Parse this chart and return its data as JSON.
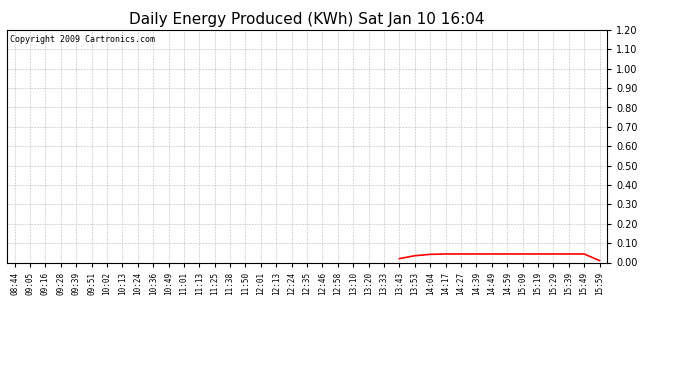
{
  "title": "Daily Energy Produced (KWh) Sat Jan 10 16:04",
  "copyright_text": "Copyright 2009 Cartronics.com",
  "line_color": "#FF0000",
  "background_color": "#FFFFFF",
  "plot_background_color": "#FFFFFF",
  "grid_color": "#BBBBBB",
  "ylim": [
    0.0,
    1.2
  ],
  "yticks": [
    0.0,
    0.1,
    0.2,
    0.3,
    0.4,
    0.5,
    0.6,
    0.7,
    0.8,
    0.9,
    1.0,
    1.1,
    1.2
  ],
  "x_labels": [
    "08:44",
    "09:05",
    "09:16",
    "09:28",
    "09:39",
    "09:51",
    "10:02",
    "10:13",
    "10:24",
    "10:36",
    "10:49",
    "11:01",
    "11:13",
    "11:25",
    "11:38",
    "11:50",
    "12:01",
    "12:13",
    "12:24",
    "12:35",
    "12:46",
    "12:58",
    "13:10",
    "13:20",
    "13:33",
    "13:43",
    "13:53",
    "14:04",
    "14:17",
    "14:27",
    "14:39",
    "14:49",
    "14:59",
    "15:09",
    "15:19",
    "15:29",
    "15:39",
    "15:49",
    "15:59"
  ],
  "data_x_indices": [
    25,
    26,
    27,
    28,
    29,
    30,
    31,
    32,
    33,
    34,
    35,
    36,
    37,
    38
  ],
  "data_y_values": [
    0.02,
    0.035,
    0.042,
    0.044,
    0.044,
    0.044,
    0.044,
    0.044,
    0.044,
    0.044,
    0.044,
    0.044,
    0.044,
    0.01
  ],
  "title_fontsize": 11,
  "copyright_fontsize": 6,
  "tick_fontsize": 5.5,
  "ytick_fontsize": 7,
  "figwidth": 6.9,
  "figheight": 3.75,
  "dpi": 100
}
